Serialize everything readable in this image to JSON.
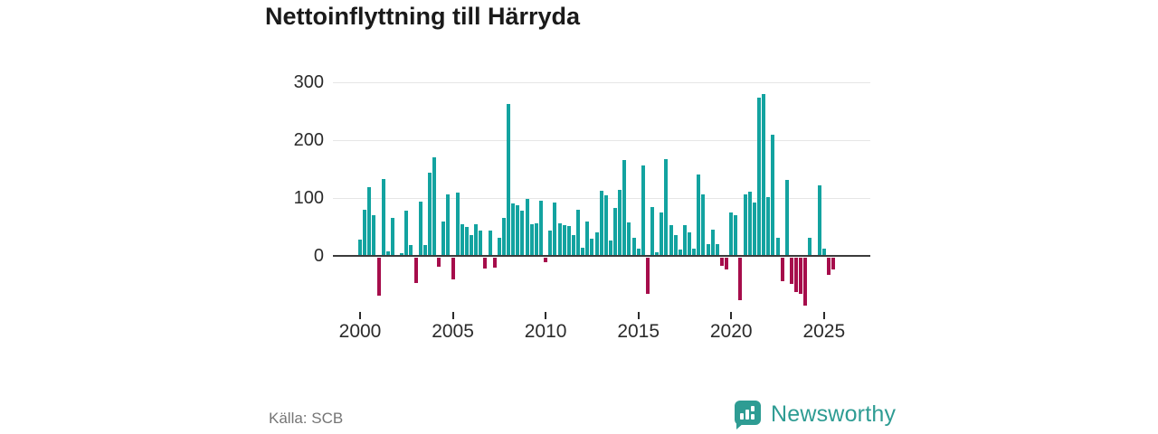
{
  "title": "Nettoinflyttning till Härryda",
  "source": "Källa: SCB",
  "branding": {
    "name": "Newsworthy",
    "color": "#2E9C93",
    "icon": "newsworthy-logo-icon"
  },
  "colors": {
    "positive_bar": "#13A3A0",
    "negative_bar": "#A60D4B",
    "gridline": "#E6E6E6",
    "zero_axis": "#3B3B3B",
    "title_text": "#1A1A1A",
    "tick_label_text": "#2B2B2B",
    "source_text": "#757575",
    "background": "#FFFFFF"
  },
  "chart_data": {
    "type": "bar",
    "title": "Nettoinflyttning till Härryda",
    "frequency": "quarterly",
    "x_start": {
      "year": 2000,
      "quarter": 1
    },
    "x_end": {
      "year": 2025,
      "quarter": 3
    },
    "values": [
      28,
      80,
      118,
      71,
      -66,
      133,
      8,
      66,
      0,
      5,
      78,
      19,
      -43,
      94,
      18,
      143,
      170,
      -16,
      59,
      106,
      -38,
      110,
      54,
      50,
      36,
      54,
      44,
      -19,
      44,
      -17,
      31,
      65,
      262,
      91,
      88,
      78,
      98,
      54,
      57,
      96,
      -8,
      44,
      92,
      57,
      53,
      52,
      36,
      80,
      14,
      60,
      30,
      40,
      113,
      105,
      27,
      83,
      114,
      166,
      58,
      31,
      13,
      156,
      -63,
      84,
      7,
      75,
      167,
      53,
      36,
      11,
      53,
      41,
      13,
      141,
      106,
      21,
      46,
      21,
      -14,
      -21,
      75,
      70,
      -73,
      106,
      111,
      92,
      273,
      279,
      101,
      210,
      31,
      -40,
      132,
      -45,
      -60,
      -62,
      -83,
      32,
      0,
      122,
      13,
      -29,
      -21
    ],
    "x_tick_labels": [
      "2000",
      "2005",
      "2010",
      "2015",
      "2020",
      "2025"
    ],
    "x_tick_years": [
      2000,
      2005,
      2010,
      2015,
      2020,
      2025
    ],
    "y_tick_labels": [
      "0",
      "100",
      "200",
      "300"
    ],
    "y_gridlines": [
      0,
      100,
      200,
      300
    ],
    "ylim": [
      -95,
      310
    ],
    "grid": "horizontal",
    "legend": "none"
  }
}
